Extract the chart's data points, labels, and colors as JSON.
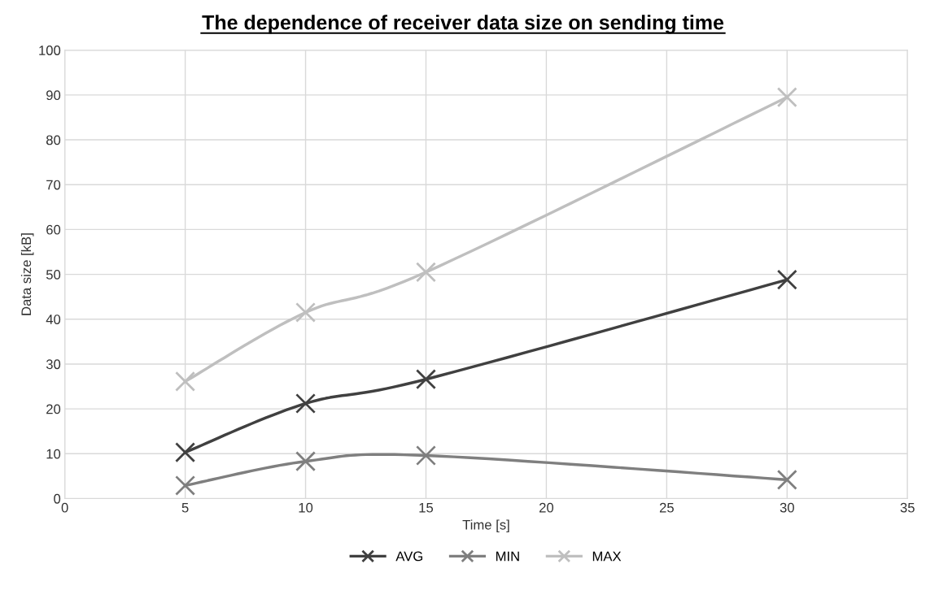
{
  "chart_data": {
    "type": "line",
    "title": "The dependence of receiver data size on sending time",
    "xlabel": "Time [s]",
    "ylabel": "Data size [kB]",
    "x": [
      5,
      10,
      15,
      30
    ],
    "series": [
      {
        "name": "AVG",
        "color": "#404040",
        "values": [
          10.3,
          21.2,
          26.6,
          48.8
        ]
      },
      {
        "name": "MIN",
        "color": "#7f7f7f",
        "values": [
          2.9,
          8.3,
          9.6,
          4.2
        ]
      },
      {
        "name": "MAX",
        "color": "#bfbfbf",
        "values": [
          26.1,
          41.5,
          50.5,
          89.5
        ]
      }
    ],
    "xlim": [
      0,
      35
    ],
    "xticks": [
      0,
      5,
      10,
      15,
      20,
      25,
      30,
      35
    ],
    "ylim": [
      0,
      100
    ],
    "yticks": [
      0,
      10,
      20,
      30,
      40,
      50,
      60,
      70,
      80,
      90,
      100
    ],
    "grid": true,
    "legend": "bottom",
    "marker": "cross",
    "line_style": "solid"
  }
}
